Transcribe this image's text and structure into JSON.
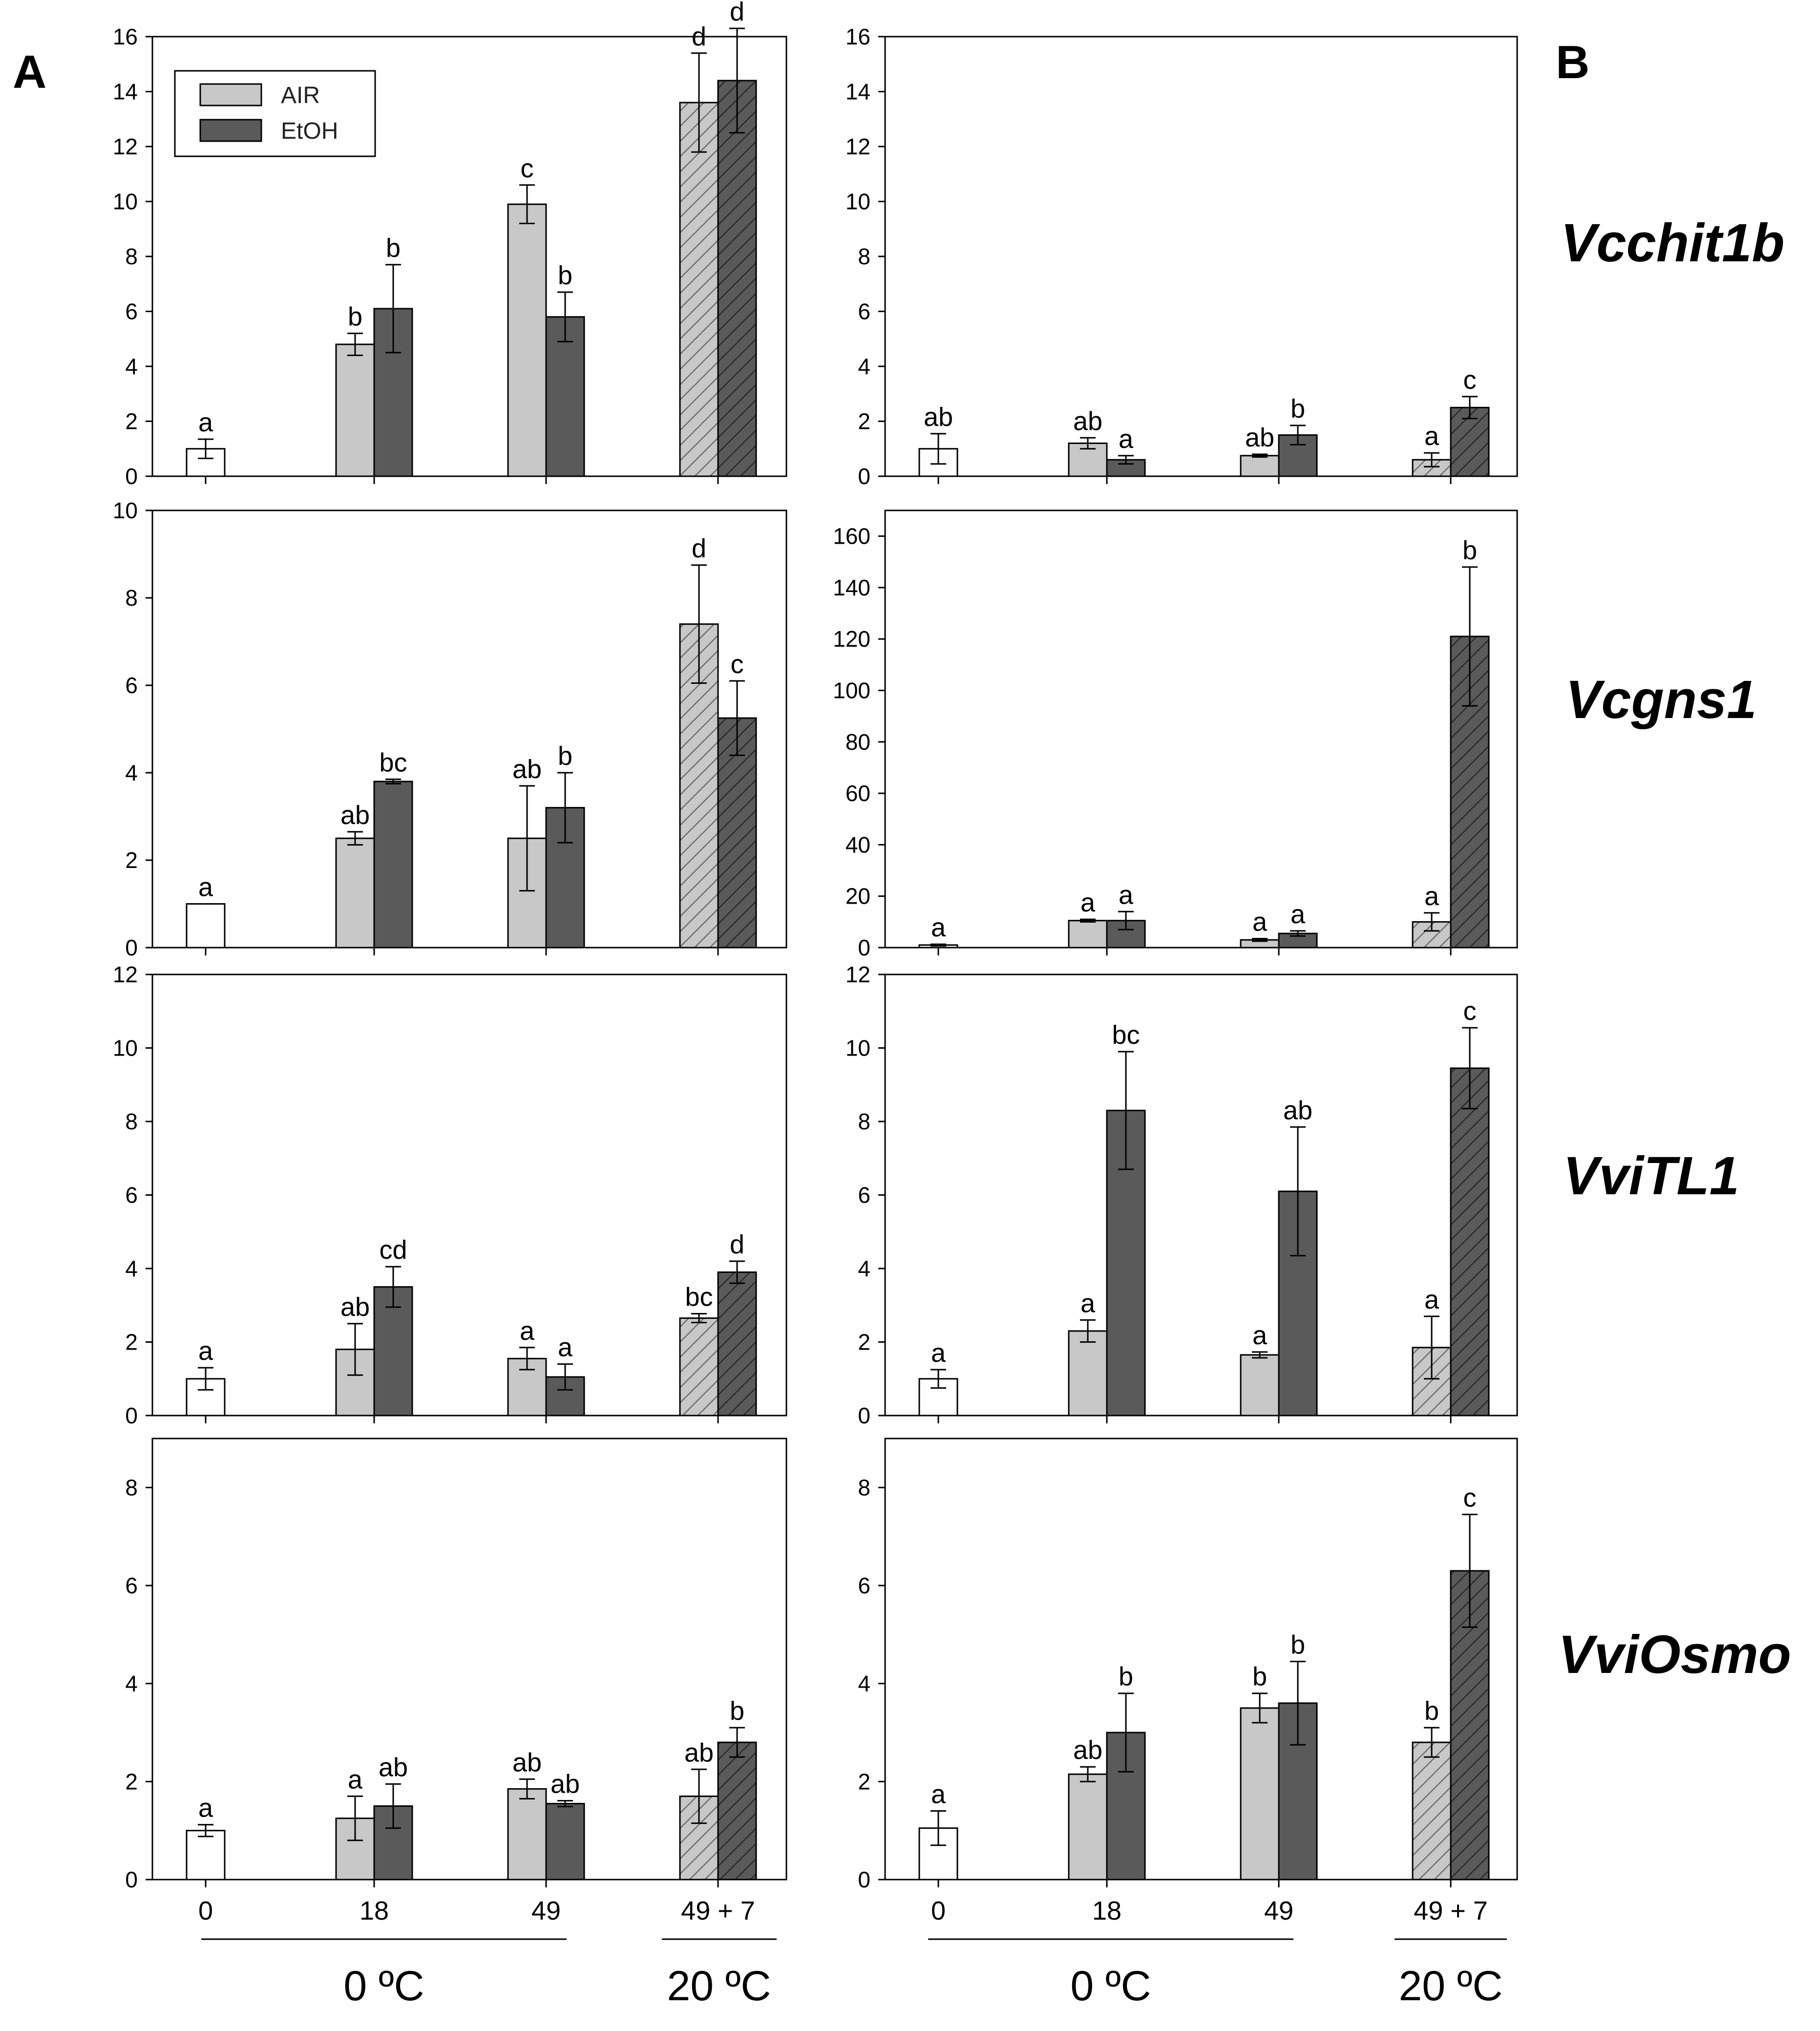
{
  "colors": {
    "control": "#ffffff",
    "air": "#c8c8c8",
    "etoh": "#5a5a5a",
    "stroke": "#000000"
  },
  "legend": {
    "items": [
      {
        "label": "AIR",
        "key": "air"
      },
      {
        "label": "EtOH",
        "key": "etoh"
      }
    ]
  },
  "panel_labels": {
    "left": "A",
    "right": "B"
  },
  "genes": [
    "Vcchit1b",
    "Vcgns1",
    "VviTL1",
    "VviOsmo"
  ],
  "x_axis": {
    "categories": [
      "0",
      "18",
      "49",
      "49 + 7"
    ],
    "group_left": "0 ºC",
    "group_right": "20 ºC"
  },
  "chart_data": [
    {
      "type": "bar",
      "panel": "A",
      "gene": "Vcchit1b",
      "ylim": [
        0,
        16
      ],
      "yticks": [
        0,
        2,
        4,
        6,
        8,
        10,
        12,
        14,
        16
      ],
      "control": {
        "value": 1.0,
        "err": 0.35,
        "sig": "a"
      },
      "series": [
        {
          "name": "AIR",
          "values": [
            4.8,
            9.9,
            13.6
          ],
          "err": [
            0.4,
            0.7,
            1.8
          ],
          "sig": [
            "b",
            "c",
            "d"
          ]
        },
        {
          "name": "EtOH",
          "values": [
            6.1,
            5.8,
            14.4
          ],
          "err": [
            1.6,
            0.9,
            1.9
          ],
          "sig": [
            "b",
            "b",
            "d"
          ]
        }
      ]
    },
    {
      "type": "bar",
      "panel": "B",
      "gene": "Vcchit1b",
      "ylim": [
        0,
        16
      ],
      "yticks": [
        0,
        2,
        4,
        6,
        8,
        10,
        12,
        14,
        16
      ],
      "control": {
        "value": 1.0,
        "err": 0.55,
        "sig": "ab"
      },
      "series": [
        {
          "name": "AIR",
          "values": [
            1.2,
            0.75,
            0.6
          ],
          "err": [
            0.2,
            0.05,
            0.25
          ],
          "sig": [
            "ab",
            "ab",
            "a"
          ]
        },
        {
          "name": "EtOH",
          "values": [
            0.6,
            1.5,
            2.5
          ],
          "err": [
            0.15,
            0.35,
            0.4
          ],
          "sig": [
            "a",
            "b",
            "c"
          ]
        }
      ]
    },
    {
      "type": "bar",
      "panel": "A",
      "gene": "Vcgns1",
      "ylim": [
        0,
        10
      ],
      "yticks": [
        0,
        2,
        4,
        6,
        8,
        10
      ],
      "control": {
        "value": 1.0,
        "err": 0,
        "sig": "a"
      },
      "series": [
        {
          "name": "AIR",
          "values": [
            2.5,
            2.5,
            7.4
          ],
          "err": [
            0.15,
            1.2,
            1.35
          ],
          "sig": [
            "ab",
            "ab",
            "d"
          ]
        },
        {
          "name": "EtOH",
          "values": [
            3.8,
            3.2,
            5.25
          ],
          "err": [
            0.05,
            0.8,
            0.85
          ],
          "sig": [
            "bc",
            "b",
            "c"
          ]
        }
      ]
    },
    {
      "type": "bar",
      "panel": "B",
      "gene": "Vcgns1",
      "ylim": [
        0,
        170
      ],
      "yticks": [
        0,
        20,
        40,
        60,
        80,
        100,
        120,
        140,
        160
      ],
      "control": {
        "value": 1.0,
        "err": 0.3,
        "sig": "a"
      },
      "series": [
        {
          "name": "AIR",
          "values": [
            10.5,
            3.0,
            10.0
          ],
          "err": [
            0.5,
            0.5,
            3.5
          ],
          "sig": [
            "a",
            "a",
            "a"
          ]
        },
        {
          "name": "EtOH",
          "values": [
            10.5,
            5.5,
            121
          ],
          "err": [
            3.5,
            1.0,
            27
          ],
          "sig": [
            "a",
            "a",
            "b"
          ]
        }
      ]
    },
    {
      "type": "bar",
      "panel": "A",
      "gene": "VviTL1",
      "ylim": [
        0,
        12
      ],
      "yticks": [
        0,
        2,
        4,
        6,
        8,
        10,
        12
      ],
      "control": {
        "value": 1.0,
        "err": 0.3,
        "sig": "a"
      },
      "series": [
        {
          "name": "AIR",
          "values": [
            1.8,
            1.55,
            2.65
          ],
          "err": [
            0.7,
            0.3,
            0.12
          ],
          "sig": [
            "ab",
            "a",
            "bc"
          ]
        },
        {
          "name": "EtOH",
          "values": [
            3.5,
            1.05,
            3.9
          ],
          "err": [
            0.55,
            0.35,
            0.3
          ],
          "sig": [
            "cd",
            "a",
            "d"
          ]
        }
      ]
    },
    {
      "type": "bar",
      "panel": "B",
      "gene": "VviTL1",
      "ylim": [
        0,
        12
      ],
      "yticks": [
        0,
        2,
        4,
        6,
        8,
        10,
        12
      ],
      "control": {
        "value": 1.0,
        "err": 0.25,
        "sig": "a"
      },
      "series": [
        {
          "name": "AIR",
          "values": [
            2.3,
            1.65,
            1.85
          ],
          "err": [
            0.3,
            0.08,
            0.85
          ],
          "sig": [
            "a",
            "a",
            "a"
          ]
        },
        {
          "name": "EtOH",
          "values": [
            8.3,
            6.1,
            9.45
          ],
          "err": [
            1.6,
            1.75,
            1.1
          ],
          "sig": [
            "bc",
            "ab",
            "c"
          ]
        }
      ]
    },
    {
      "type": "bar",
      "panel": "A",
      "gene": "VviOsmo",
      "ylim": [
        0,
        9
      ],
      "yticks": [
        0,
        2,
        4,
        6,
        8
      ],
      "control": {
        "value": 1.0,
        "err": 0.12,
        "sig": "a"
      },
      "series": [
        {
          "name": "AIR",
          "values": [
            1.25,
            1.85,
            1.7
          ],
          "err": [
            0.45,
            0.2,
            0.55
          ],
          "sig": [
            "a",
            "ab",
            "ab"
          ]
        },
        {
          "name": "EtOH",
          "values": [
            1.5,
            1.55,
            2.8
          ],
          "err": [
            0.45,
            0.06,
            0.3
          ],
          "sig": [
            "ab",
            "ab",
            "b"
          ]
        }
      ]
    },
    {
      "type": "bar",
      "panel": "B",
      "gene": "VviOsmo",
      "ylim": [
        0,
        9
      ],
      "yticks": [
        0,
        2,
        4,
        6,
        8
      ],
      "control": {
        "value": 1.05,
        "err": 0.35,
        "sig": "a"
      },
      "series": [
        {
          "name": "AIR",
          "values": [
            2.15,
            3.5,
            2.8
          ],
          "err": [
            0.15,
            0.3,
            0.3
          ],
          "sig": [
            "ab",
            "b",
            "b"
          ]
        },
        {
          "name": "EtOH",
          "values": [
            3.0,
            3.6,
            6.3
          ],
          "err": [
            0.8,
            0.85,
            1.15
          ],
          "sig": [
            "b",
            "b",
            "c"
          ]
        }
      ]
    }
  ]
}
